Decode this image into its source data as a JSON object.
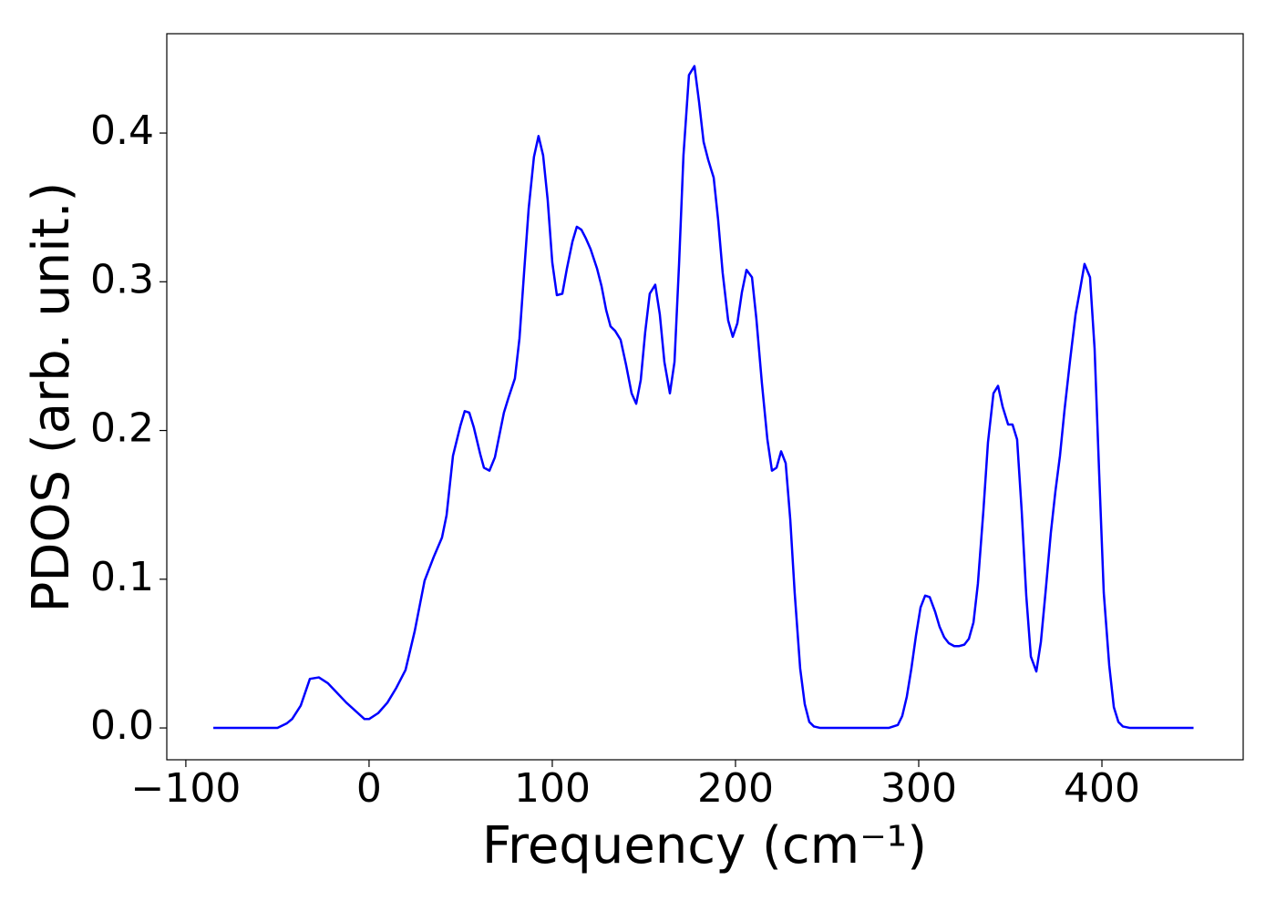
{
  "chart_data": {
    "type": "line",
    "xlabel": "Frequency (cm⁻¹)",
    "ylabel": "PDOS (arb. unit.)",
    "color": "#0000ff",
    "xlim": [
      -110.4,
      477.1
    ],
    "ylim": [
      -0.0214,
      0.4668
    ],
    "xticks": [
      {
        "value": -100,
        "label": "−100"
      },
      0,
      100,
      200,
      300,
      400
    ],
    "yticks": [
      {
        "value": 0,
        "label": "0.0"
      },
      0.1,
      0.2,
      0.3,
      0.4
    ],
    "grid": false,
    "x": [
      -85,
      -50,
      -45,
      -42,
      -37.3,
      -32.3,
      -27.4,
      -22.4,
      -12.4,
      -2.5,
      0,
      5,
      10,
      14.9,
      19.9,
      24.9,
      30.3,
      35.3,
      39.8,
      42.3,
      45.8,
      49.8,
      52.2,
      54.7,
      57.2,
      60.7,
      62.7,
      65.7,
      68.7,
      73.6,
      76.1,
      79.6,
      82.1,
      84.6,
      87.1,
      90.0,
      92.5,
      95.0,
      97.5,
      100,
      102.5,
      105.5,
      108,
      111,
      113.4,
      115.9,
      118.4,
      120.9,
      124.4,
      126.9,
      129.4,
      131.8,
      134.3,
      137.3,
      140.3,
      143.3,
      145.8,
      148.3,
      150.7,
      153.2,
      156.2,
      158.7,
      161.2,
      164.2,
      166.7,
      169.2,
      171.6,
      174.6,
      177.6,
      180.1,
      182.6,
      185.1,
      188.1,
      190.5,
      193,
      196,
      198.5,
      201,
      203.5,
      206,
      209,
      211.4,
      214.4,
      217.4,
      219.9,
      222.4,
      224.9,
      227.4,
      229.9,
      232.3,
      235.3,
      237.8,
      240.3,
      242.8,
      246.3,
      283.6,
      288.6,
      291,
      293.5,
      296,
      298.5,
      301,
      303.5,
      306,
      309,
      311.4,
      313.9,
      316.4,
      319.4,
      321.9,
      324.9,
      327.4,
      329.9,
      332.3,
      335.3,
      337.8,
      340.8,
      343.3,
      345.8,
      348.8,
      351.2,
      353.7,
      356.2,
      358.7,
      361.2,
      364.2,
      366.7,
      369.2,
      372.1,
      374.6,
      377.1,
      379.6,
      382.6,
      385.6,
      388.1,
      390.5,
      393.5,
      396,
      398.5,
      401,
      404,
      406.5,
      409,
      411.4,
      415.4,
      450
    ],
    "values": [
      0,
      0,
      0.003,
      0.006,
      0.015,
      0.033,
      0.034,
      0.03,
      0.017,
      0.006,
      0.006,
      0.01,
      0.017,
      0.027,
      0.039,
      0.065,
      0.099,
      0.115,
      0.128,
      0.143,
      0.183,
      0.203,
      0.213,
      0.212,
      0.202,
      0.184,
      0.175,
      0.173,
      0.182,
      0.212,
      0.222,
      0.235,
      0.262,
      0.306,
      0.349,
      0.384,
      0.398,
      0.385,
      0.355,
      0.313,
      0.291,
      0.292,
      0.309,
      0.327,
      0.337,
      0.335,
      0.329,
      0.322,
      0.309,
      0.297,
      0.281,
      0.27,
      0.267,
      0.261,
      0.244,
      0.225,
      0.218,
      0.234,
      0.266,
      0.292,
      0.298,
      0.278,
      0.246,
      0.225,
      0.246,
      0.312,
      0.385,
      0.439,
      0.445,
      0.421,
      0.394,
      0.382,
      0.37,
      0.342,
      0.306,
      0.274,
      0.263,
      0.272,
      0.293,
      0.308,
      0.303,
      0.275,
      0.232,
      0.194,
      0.173,
      0.175,
      0.186,
      0.178,
      0.14,
      0.091,
      0.04,
      0.016,
      0.004,
      0.001,
      0,
      0,
      0.002,
      0.008,
      0.021,
      0.04,
      0.062,
      0.081,
      0.089,
      0.088,
      0.078,
      0.068,
      0.061,
      0.057,
      0.055,
      0.055,
      0.056,
      0.06,
      0.071,
      0.097,
      0.146,
      0.192,
      0.225,
      0.23,
      0.216,
      0.204,
      0.204,
      0.194,
      0.146,
      0.089,
      0.048,
      0.038,
      0.058,
      0.091,
      0.131,
      0.159,
      0.183,
      0.214,
      0.247,
      0.278,
      0.295,
      0.312,
      0.303,
      0.255,
      0.171,
      0.091,
      0.042,
      0.014,
      0.004,
      0.001,
      0,
      0
    ]
  }
}
